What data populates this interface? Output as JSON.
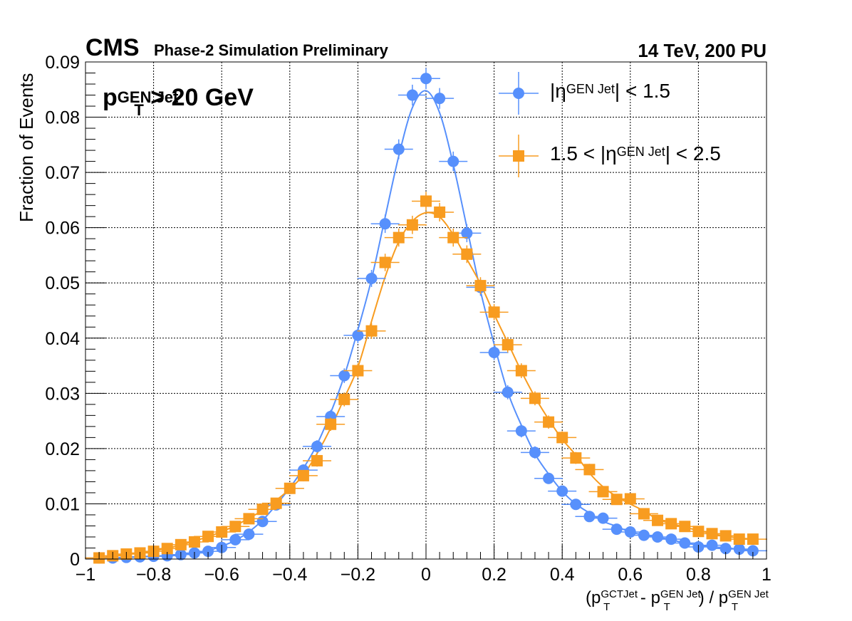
{
  "header": {
    "experiment": "CMS",
    "status": "Phase-2 Simulation Preliminary",
    "energy": "14 TeV, 200 PU"
  },
  "annotation": {
    "cut_main": "p",
    "cut_sup": "GEN Jet",
    "cut_sub": "T",
    "cut_rest": " > 20 GeV"
  },
  "legend": {
    "entry1_pre": "|η",
    "entry1_sup": "GEN Jet",
    "entry1_post": "| < 1.5",
    "entry2_pre": "1.5 < |η",
    "entry2_sup": "GEN Jet",
    "entry2_post": "| < 2.5"
  },
  "axes": {
    "x_title_p1": "(p",
    "x_title_s1": "T",
    "x_title_u1": "GCTJet",
    "x_title_p2": " - p",
    "x_title_s2": "T",
    "x_title_u2": "GEN Jet",
    "x_title_p3": ") / p",
    "x_title_s3": "T",
    "x_title_u3": "GEN Jet",
    "y_title": "Fraction of Events"
  },
  "chart_data": {
    "type": "scatter",
    "xlim": [
      -1,
      1
    ],
    "ylim": [
      0,
      0.09
    ],
    "x_ticks": [
      -1,
      -0.8,
      -0.6,
      -0.4,
      -0.2,
      0,
      0.2,
      0.4,
      0.6,
      0.8,
      1
    ],
    "x_tick_labels": [
      "−1",
      "−0.8",
      "−0.6",
      "−0.4",
      "−0.2",
      "0",
      "0.2",
      "0.4",
      "0.6",
      "0.8",
      "1"
    ],
    "y_ticks": [
      0,
      0.01,
      0.02,
      0.03,
      0.04,
      0.05,
      0.06,
      0.07,
      0.08,
      0.09
    ],
    "y_tick_labels": [
      "0",
      "0.01",
      "0.02",
      "0.03",
      "0.04",
      "0.05",
      "0.06",
      "0.07",
      "0.08",
      "0.09"
    ],
    "grid": true,
    "legend_position": "top-right",
    "x": [
      -0.96,
      -0.92,
      -0.88,
      -0.84,
      -0.8,
      -0.76,
      -0.72,
      -0.68,
      -0.64,
      -0.6,
      -0.56,
      -0.52,
      -0.48,
      -0.44,
      -0.4,
      -0.36,
      -0.32,
      -0.28,
      -0.24,
      -0.2,
      -0.16,
      -0.12,
      -0.08,
      -0.04,
      0.0,
      0.04,
      0.08,
      0.12,
      0.16,
      0.2,
      0.24,
      0.28,
      0.32,
      0.36,
      0.4,
      0.44,
      0.48,
      0.52,
      0.56,
      0.6,
      0.64,
      0.68,
      0.72,
      0.76,
      0.8,
      0.84,
      0.88,
      0.92,
      0.96
    ],
    "series": [
      {
        "marker": "circle",
        "color": "#5790fc",
        "values": [
          0.0002,
          0.0002,
          0.0003,
          0.0004,
          0.0005,
          0.0006,
          0.0008,
          0.0011,
          0.0014,
          0.0021,
          0.0035,
          0.0045,
          0.0068,
          0.0098,
          0.0128,
          0.0161,
          0.0204,
          0.0258,
          0.0332,
          0.0405,
          0.0508,
          0.0607,
          0.0742,
          0.084,
          0.087,
          0.0834,
          0.072,
          0.059,
          0.0492,
          0.0374,
          0.0302,
          0.0232,
          0.0193,
          0.0146,
          0.0123,
          0.0099,
          0.0077,
          0.0074,
          0.0054,
          0.0049,
          0.0043,
          0.004,
          0.0036,
          0.0029,
          0.0022,
          0.0025,
          0.0019,
          0.0018,
          0.0015
        ]
      },
      {
        "marker": "square",
        "color": "#f89c20",
        "values": [
          0.0002,
          0.0006,
          0.0009,
          0.0011,
          0.0014,
          0.0019,
          0.0026,
          0.0031,
          0.0041,
          0.0049,
          0.0059,
          0.0073,
          0.009,
          0.0101,
          0.0128,
          0.0151,
          0.0178,
          0.0244,
          0.0289,
          0.0341,
          0.0413,
          0.0537,
          0.0582,
          0.0605,
          0.0648,
          0.0628,
          0.0582,
          0.0552,
          0.0495,
          0.0447,
          0.0388,
          0.0341,
          0.0291,
          0.0248,
          0.022,
          0.0183,
          0.0162,
          0.0122,
          0.0108,
          0.0109,
          0.0082,
          0.007,
          0.0064,
          0.0059,
          0.005,
          0.0046,
          0.0042,
          0.0036,
          0.0036
        ]
      }
    ]
  }
}
